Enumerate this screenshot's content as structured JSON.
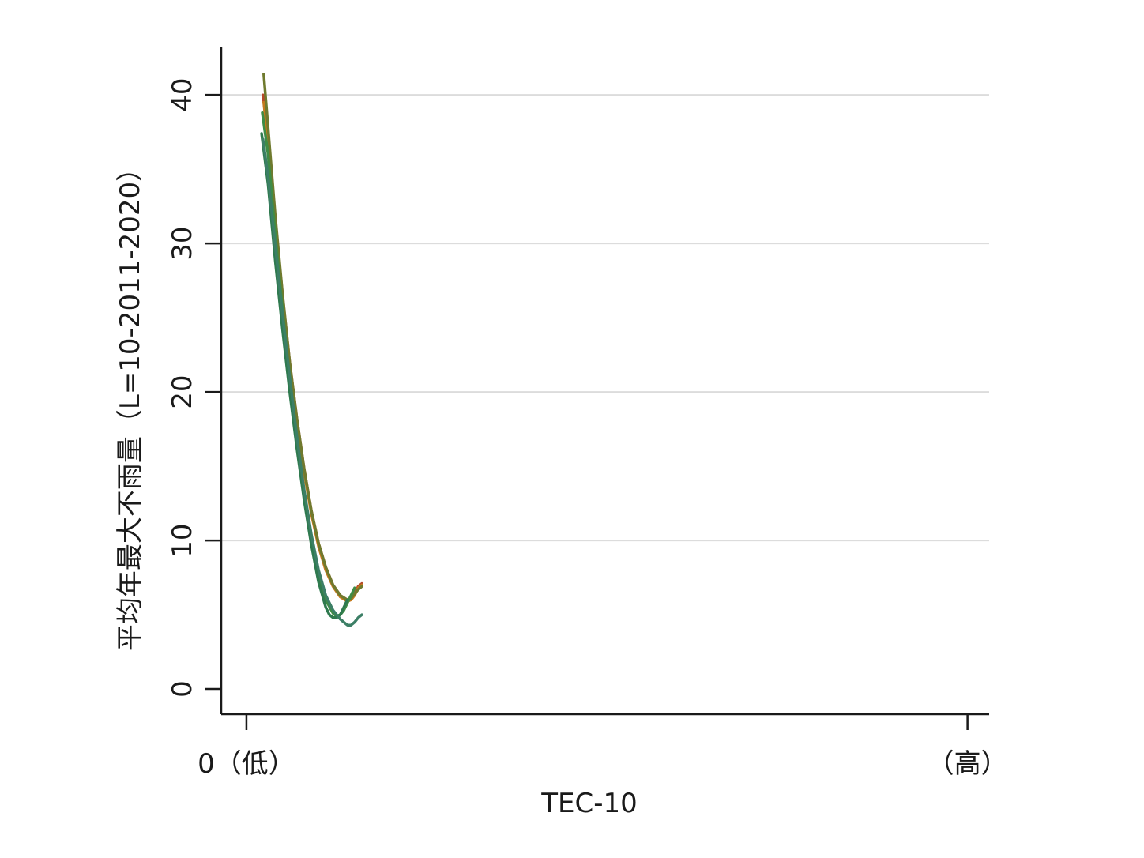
{
  "chart_data": {
    "type": "line",
    "title": "",
    "xlabel": "TEC-10",
    "ylabel": "平均年最大不雨量（L=10-2011-2020）",
    "ylim": [
      -1.7,
      43.2
    ],
    "xlim": [
      -0.035,
      1.03
    ],
    "y_ticks": [
      0,
      10,
      20,
      30,
      40
    ],
    "x_ticks": [
      {
        "value": 0,
        "label": "0（低）"
      },
      {
        "value": 1,
        "label": "（高）"
      }
    ],
    "grid": "horizontal",
    "legend": "none",
    "series": [
      {
        "color": "#b5482a",
        "x": [
          0.023,
          0.03,
          0.04,
          0.05,
          0.06,
          0.07,
          0.08,
          0.09,
          0.1,
          0.11,
          0.12,
          0.13,
          0.14,
          0.145,
          0.15,
          0.155,
          0.16
        ],
        "y": [
          40.0,
          37.0,
          31.5,
          26.5,
          22.0,
          18.2,
          14.8,
          12.0,
          9.8,
          8.2,
          7.0,
          6.3,
          6.0,
          6.1,
          6.4,
          6.9,
          7.1
        ]
      },
      {
        "color": "#c47a1e",
        "x": [
          0.024,
          0.03,
          0.04,
          0.05,
          0.06,
          0.07,
          0.08,
          0.09,
          0.1,
          0.11,
          0.12,
          0.13,
          0.14,
          0.145,
          0.15,
          0.155,
          0.16
        ],
        "y": [
          39.5,
          36.8,
          31.2,
          26.3,
          21.8,
          18.0,
          14.6,
          11.8,
          9.6,
          8.0,
          6.9,
          6.2,
          5.9,
          6.0,
          6.3,
          6.8,
          7.0
        ]
      },
      {
        "color": "#6f7a2e",
        "x": [
          0.024,
          0.03,
          0.04,
          0.05,
          0.06,
          0.07,
          0.08,
          0.09,
          0.1,
          0.11,
          0.12,
          0.13,
          0.14,
          0.145,
          0.15,
          0.155,
          0.16
        ],
        "y": [
          41.4,
          37.8,
          31.8,
          26.6,
          22.0,
          18.2,
          14.8,
          12.0,
          9.8,
          8.2,
          7.0,
          6.3,
          6.0,
          6.1,
          6.4,
          6.7,
          6.9
        ]
      },
      {
        "color": "#3f8c45",
        "x": [
          0.022,
          0.03,
          0.04,
          0.05,
          0.06,
          0.07,
          0.08,
          0.09,
          0.1,
          0.11,
          0.12,
          0.125,
          0.13,
          0.135,
          0.14,
          0.15
        ],
        "y": [
          38.8,
          36.0,
          30.5,
          25.5,
          20.8,
          16.8,
          13.2,
          10.2,
          7.8,
          6.0,
          5.1,
          4.9,
          5.0,
          5.3,
          5.8,
          6.8
        ]
      },
      {
        "color": "#2f7a4f",
        "x": [
          0.021,
          0.03,
          0.04,
          0.05,
          0.06,
          0.07,
          0.08,
          0.09,
          0.1,
          0.11,
          0.115,
          0.12,
          0.125,
          0.13,
          0.135,
          0.14
        ],
        "y": [
          37.4,
          34.0,
          28.8,
          24.2,
          20.0,
          16.2,
          12.7,
          9.7,
          7.2,
          5.5,
          5.0,
          4.8,
          4.8,
          5.0,
          5.5,
          6.0
        ]
      },
      {
        "color": "#3c7f66",
        "x": [
          0.023,
          0.03,
          0.04,
          0.05,
          0.06,
          0.07,
          0.08,
          0.09,
          0.1,
          0.11,
          0.12,
          0.13,
          0.135,
          0.14,
          0.145,
          0.15,
          0.155,
          0.16
        ],
        "y": [
          37.0,
          34.5,
          29.8,
          25.2,
          21.0,
          17.0,
          13.4,
          10.4,
          8.0,
          6.3,
          5.3,
          4.7,
          4.5,
          4.3,
          4.3,
          4.5,
          4.8,
          5.0
        ]
      }
    ]
  }
}
